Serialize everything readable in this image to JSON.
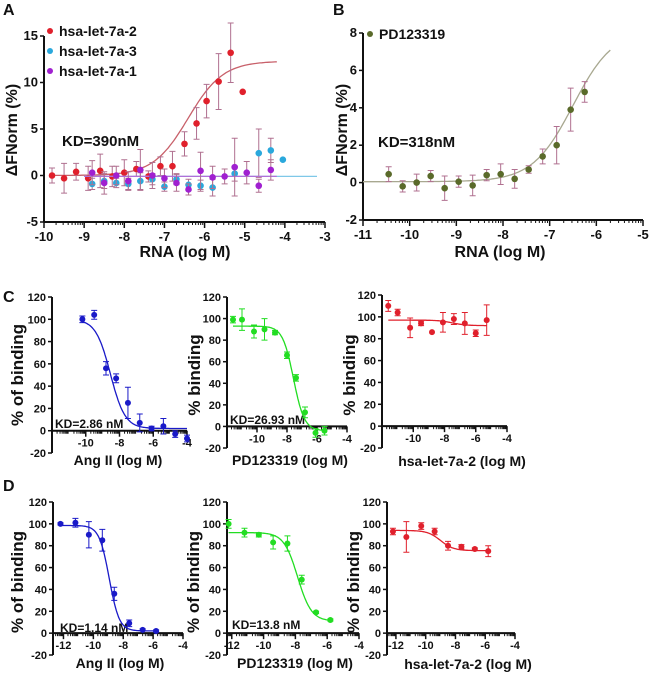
{
  "panel_labels": [
    "A",
    "B",
    "C",
    "D"
  ],
  "chart_data": [
    {
      "type": "scatter",
      "panel": "A",
      "xlabel": "RNA (log M)",
      "ylabel": "ΔFNorm (%)",
      "xlim": [
        -10,
        -3
      ],
      "ylim": [
        -5,
        15
      ],
      "xticks": [
        -10,
        -9,
        -8,
        -7,
        -6,
        -5,
        -4,
        -3
      ],
      "yticks": [
        -5,
        0,
        5,
        10,
        15
      ],
      "annotation": "KD=390nM",
      "legend": "top-left",
      "series": [
        {
          "name": "hsa-let-7a-2",
          "color": "#e0202c",
          "fit_color": "#c8606a",
          "points": [
            [
              -9.8,
              0.0,
              0.8
            ],
            [
              -9.5,
              -0.3,
              1.6
            ],
            [
              -9.2,
              0.4,
              0.9
            ],
            [
              -8.9,
              -0.3,
              1.3
            ],
            [
              -8.6,
              0.5,
              1.8
            ],
            [
              -8.3,
              -0.1,
              1.1
            ],
            [
              -8.0,
              0.3,
              1.4
            ],
            [
              -7.7,
              0.7,
              0.8
            ],
            [
              -7.4,
              -0.1,
              0.6
            ],
            [
              -7.1,
              1.0,
              1.0
            ],
            [
              -6.8,
              1.0,
              1.6
            ],
            [
              -6.5,
              3.4,
              1.3
            ],
            [
              -6.2,
              5.6,
              1.7
            ],
            [
              -5.95,
              8.0,
              1.8
            ],
            [
              -5.65,
              10.1,
              3.0
            ],
            [
              -5.35,
              13.2,
              3.2
            ],
            [
              -5.05,
              9.0,
              0
            ]
          ],
          "fit": {
            "bottom": 0,
            "top": 12.3,
            "logEC50": -6.41,
            "hill": 1.0,
            "from": -9.8,
            "to": -4.2
          }
        },
        {
          "name": "hsa-let-7a-3",
          "color": "#2aa8dc",
          "fit_color": "#7fc8e8",
          "points": [
            [
              -8.8,
              -0.9,
              0.6
            ],
            [
              -8.5,
              -0.6,
              0.8
            ],
            [
              -8.2,
              -0.8,
              0.5
            ],
            [
              -7.9,
              -0.9,
              0.6
            ],
            [
              -7.6,
              -0.6,
              0.9
            ],
            [
              -7.3,
              -0.4,
              0.6
            ],
            [
              -7.0,
              -1.2,
              0.5
            ],
            [
              -6.7,
              -0.4,
              0.6
            ],
            [
              -6.4,
              -1.0,
              0.6
            ],
            [
              -6.1,
              -1.1,
              0.6
            ],
            [
              -5.8,
              -1.3,
              0.9
            ],
            [
              -5.25,
              0.2,
              0.8
            ],
            [
              -4.65,
              2.4,
              2.6
            ],
            [
              -4.35,
              2.7,
              1.3
            ],
            [
              -4.05,
              1.7,
              0
            ]
          ],
          "fit": {
            "bottom": -0.1,
            "top": -0.1,
            "logEC50": -6.5,
            "hill": 1.0,
            "from": -9.0,
            "to": -3.2
          }
        },
        {
          "name": "hsa-let-7a-1",
          "color": "#a020d0",
          "fit_color": "#b070d8",
          "points": [
            [
              -8.8,
              0.3,
              1.3
            ],
            [
              -8.5,
              -0.8,
              1.2
            ],
            [
              -8.2,
              0.0,
              1.0
            ],
            [
              -7.9,
              -0.6,
              1.0
            ],
            [
              -7.6,
              0.6,
              2.2
            ],
            [
              -7.3,
              0.0,
              1.4
            ],
            [
              -7.0,
              -0.3,
              1.0
            ],
            [
              -6.7,
              -0.8,
              0.9
            ],
            [
              -6.4,
              -1.5,
              0.6
            ],
            [
              -6.1,
              0.5,
              2.0
            ],
            [
              -5.8,
              -0.2,
              1.2
            ],
            [
              -5.5,
              -0.1,
              0.8
            ],
            [
              -5.25,
              0.9,
              3.1
            ],
            [
              -4.95,
              0.3,
              1.2
            ],
            [
              -4.65,
              -1.1,
              0.7
            ],
            [
              -4.35,
              0.6,
              1.1
            ]
          ],
          "fit": {
            "bottom": -0.1,
            "top": -0.1,
            "logEC50": -6.5,
            "hill": 1.0,
            "from": -9.0,
            "to": -4.2
          }
        }
      ]
    },
    {
      "type": "scatter",
      "panel": "B",
      "xlabel": "RNA (log M)",
      "ylabel": "ΔFNorm (%)",
      "xlim": [
        -11,
        -5
      ],
      "ylim": [
        -2,
        8
      ],
      "xticks": [
        -11,
        -10,
        -9,
        -8,
        -7,
        -6,
        -5
      ],
      "yticks": [
        -2,
        0,
        2,
        4,
        6,
        8
      ],
      "annotation": "KD=318nM",
      "legend": "top-left",
      "series": [
        {
          "name": "PD123319",
          "color": "#5a6a2a",
          "fit_color": "#a8a890",
          "points": [
            [
              -10.45,
              0.45,
              0.4
            ],
            [
              -10.15,
              -0.2,
              0.3
            ],
            [
              -9.85,
              0.0,
              0.45
            ],
            [
              -9.55,
              0.35,
              0.3
            ],
            [
              -9.25,
              -0.3,
              0.65
            ],
            [
              -8.95,
              0.05,
              0.3
            ],
            [
              -8.65,
              -0.15,
              0.55
            ],
            [
              -8.35,
              0.4,
              0.3
            ],
            [
              -8.05,
              0.45,
              0.55
            ],
            [
              -7.75,
              0.2,
              0.5
            ],
            [
              -7.45,
              0.7,
              0.2
            ],
            [
              -7.15,
              1.4,
              0.4
            ],
            [
              -6.85,
              2.0,
              1.0
            ],
            [
              -6.55,
              3.9,
              1.15
            ],
            [
              -6.25,
              4.85,
              0.55
            ]
          ],
          "fit": {
            "bottom": 0.05,
            "top": 8.2,
            "logEC50": -6.5,
            "hill": 1.0,
            "from": -11.0,
            "to": -5.7
          }
        }
      ]
    },
    {
      "type": "scatter",
      "panel": "C",
      "xlabel": "Ang II (log M)",
      "ylabel": "% of binding",
      "xlim": [
        -12,
        -4
      ],
      "ylim": [
        -20,
        120
      ],
      "xticks": [
        -10,
        -8,
        -6,
        -4
      ],
      "yticks": [
        -20,
        0,
        20,
        40,
        60,
        80,
        100,
        120
      ],
      "annotation": "KD=2.86 nM",
      "series": [
        {
          "color": "#1a1ac8",
          "fit_color": "#1a1ac8",
          "points": [
            [
              -10.2,
              100,
              3
            ],
            [
              -9.5,
              104,
              4
            ],
            [
              -8.8,
              56,
              6
            ],
            [
              -8.2,
              47,
              4
            ],
            [
              -7.5,
              25,
              14
            ],
            [
              -6.8,
              7,
              8
            ],
            [
              -6.1,
              2,
              2
            ],
            [
              -5.4,
              4,
              7
            ],
            [
              -4.7,
              -3,
              3
            ],
            [
              -4.0,
              -7,
              3
            ]
          ],
          "fit": {
            "bottom": 2,
            "top": 100,
            "logEC50": -8.54,
            "hill": -1.0,
            "from": -10.2,
            "to": -4.0
          }
        }
      ]
    },
    {
      "type": "scatter",
      "panel": "C",
      "xlabel": "PD123319 (log M)",
      "ylabel": "% binding",
      "xlim": [
        -12,
        -4
      ],
      "ylim": [
        -20,
        120
      ],
      "xticks": [
        -10,
        -8,
        -6,
        -4
      ],
      "yticks": [
        -20,
        0,
        20,
        40,
        60,
        80,
        100,
        120
      ],
      "annotation": "KD=26.93 nM",
      "series": [
        {
          "color": "#22dd22",
          "fit_color": "#22dd22",
          "points": [
            [
              -11.6,
              99,
              3
            ],
            [
              -11.0,
              99,
              10
            ],
            [
              -10.2,
              88,
              6
            ],
            [
              -9.5,
              90,
              10
            ],
            [
              -8.8,
              87,
              2
            ],
            [
              -8.0,
              66,
              3
            ],
            [
              -7.4,
              45,
              3
            ],
            [
              -6.8,
              13,
              5
            ],
            [
              -6.1,
              -6,
              4
            ],
            [
              -5.5,
              -4,
              4
            ]
          ],
          "fit": {
            "bottom": -4,
            "top": 93,
            "logEC50": -7.57,
            "hill": -1.2,
            "from": -11.6,
            "to": -5.5
          }
        }
      ]
    },
    {
      "type": "scatter",
      "panel": "C",
      "xlabel": "hsa-let-7a-2 (log M)",
      "ylabel": "% binding",
      "xlim": [
        -12,
        -4
      ],
      "ylim": [
        -20,
        120
      ],
      "xticks": [
        -10,
        -8,
        -6,
        -4
      ],
      "yticks": [
        -20,
        0,
        20,
        40,
        60,
        80,
        100,
        120
      ],
      "series": [
        {
          "color": "#e0202c",
          "fit_color": "#e0202c",
          "points": [
            [
              -11.6,
              110,
              5
            ],
            [
              -11.0,
              104,
              3
            ],
            [
              -10.2,
              90,
              9
            ],
            [
              -9.5,
              94,
              2
            ],
            [
              -8.8,
              86,
              0
            ],
            [
              -8.1,
              95,
              9
            ],
            [
              -7.4,
              98,
              5
            ],
            [
              -6.7,
              94,
              10
            ],
            [
              -6.0,
              85,
              3
            ],
            [
              -5.3,
              97,
              14
            ]
          ],
          "fit": {
            "bottom": 92,
            "top": 97,
            "logEC50": -7.5,
            "hill": -1.0,
            "from": -11.6,
            "to": -5.3
          }
        }
      ]
    },
    {
      "type": "scatter",
      "panel": "D",
      "xlabel": "Ang II (log M)",
      "ylabel": "% of binding",
      "xlim": [
        -12.7,
        -4
      ],
      "ylim": [
        -20,
        120
      ],
      "xticks": [
        -12,
        -10,
        -8,
        -6,
        -4
      ],
      "yticks": [
        -20,
        0,
        20,
        40,
        60,
        80,
        100,
        120
      ],
      "annotation": "KD=1.14 nM",
      "series": [
        {
          "color": "#1a1ac8",
          "fit_color": "#1a1ac8",
          "points": [
            [
              -12.2,
              100,
              1
            ],
            [
              -11.2,
              101,
              4
            ],
            [
              -10.3,
              90,
              12
            ],
            [
              -9.4,
              85,
              10
            ],
            [
              -8.6,
              36,
              6
            ],
            [
              -7.6,
              9,
              3
            ],
            [
              -6.7,
              3,
              1
            ],
            [
              -5.8,
              2,
              1
            ]
          ],
          "fit": {
            "bottom": 2,
            "top": 98.5,
            "logEC50": -8.94,
            "hill": -1.3,
            "from": -12.2,
            "to": -5.8
          }
        }
      ]
    },
    {
      "type": "scatter",
      "panel": "D",
      "xlabel": "PD123319 (log M)",
      "ylabel": "% of binding",
      "xlim": [
        -12.3,
        -4
      ],
      "ylim": [
        -20,
        120
      ],
      "xticks": [
        -12,
        -10,
        -8,
        -6,
        -4
      ],
      "yticks": [
        -20,
        0,
        20,
        40,
        60,
        80,
        100,
        120
      ],
      "annotation": "KD=13.8 nM",
      "series": [
        {
          "color": "#22dd22",
          "fit_color": "#22dd22",
          "points": [
            [
              -12.2,
              100,
              4
            ],
            [
              -11.2,
              92,
              4
            ],
            [
              -10.3,
              90,
              2
            ],
            [
              -9.4,
              83,
              6
            ],
            [
              -8.5,
              82,
              7
            ],
            [
              -7.6,
              49,
              4
            ],
            [
              -6.7,
              19,
              1
            ],
            [
              -5.8,
              12,
              1
            ]
          ],
          "fit": {
            "bottom": 11,
            "top": 92,
            "logEC50": -7.86,
            "hill": -1.0,
            "from": -12.2,
            "to": -5.8
          }
        }
      ]
    },
    {
      "type": "scatter",
      "panel": "D",
      "xlabel": "hsa-let-7a-2 (log M)",
      "ylabel": "% of binding",
      "xlim": [
        -12.6,
        -4
      ],
      "ylim": [
        -20,
        120
      ],
      "xticks": [
        -12,
        -10,
        -8,
        -6,
        -4
      ],
      "yticks": [
        -20,
        0,
        20,
        40,
        60,
        80,
        100,
        120
      ],
      "series": [
        {
          "color": "#e0202c",
          "fit_color": "#e0202c",
          "points": [
            [
              -12.2,
              93,
              3
            ],
            [
              -11.3,
              88,
              14
            ],
            [
              -10.3,
              98,
              3
            ],
            [
              -9.4,
              93,
              3
            ],
            [
              -8.5,
              80,
              4
            ],
            [
              -7.6,
              79,
              2
            ],
            [
              -6.7,
              77,
              1
            ],
            [
              -5.8,
              75,
              5
            ]
          ],
          "fit": {
            "bottom": 75.5,
            "top": 94,
            "logEC50": -9.0,
            "hill": -1.0,
            "from": -12.2,
            "to": -5.8
          }
        }
      ]
    }
  ]
}
